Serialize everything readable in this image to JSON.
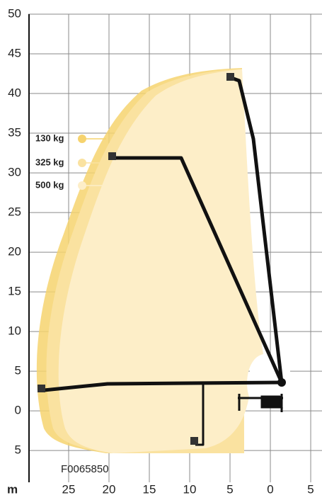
{
  "chart_data": {
    "type": "reach-diagram",
    "xlim": [
      30,
      -6.4
    ],
    "ylim": [
      -9,
      50
    ],
    "xticks": [
      25,
      20,
      15,
      10,
      5,
      0,
      {
        "value": -5,
        "label": "5"
      }
    ],
    "yticks": [
      50,
      45,
      40,
      35,
      30,
      25,
      20,
      15,
      10,
      5,
      0,
      {
        "value": -5,
        "label": "5"
      }
    ],
    "grid": true,
    "legend": [
      {
        "name": "130 kg",
        "color": "#f6d36e"
      },
      {
        "name": "325 kg",
        "color": "#fae2a0"
      },
      {
        "name": "500 kg",
        "color": "#fdeec8"
      }
    ],
    "x_unit": "m",
    "code": "F0065850"
  }
}
